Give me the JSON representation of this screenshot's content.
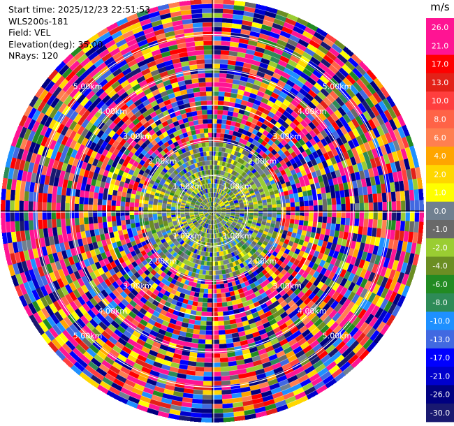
{
  "info": {
    "start_time": "Start time: 2025/12/23 22:51:53",
    "station": "WLS200s-181",
    "field": "Field: VEL",
    "elevation": "Elevation(deg): 35.00",
    "nrays": "NRays: 120"
  },
  "chart_data": {
    "type": "heatmap",
    "projection": "polar-ppi",
    "field": "VEL",
    "n_rays": 120,
    "n_gates": 46,
    "range_rings": [
      {
        "label": "1.00km",
        "range_km": 1.0
      },
      {
        "label": "2.00km",
        "range_km": 2.0
      },
      {
        "label": "3.00km",
        "range_km": 3.0
      },
      {
        "label": "4.00km",
        "range_km": 4.0
      },
      {
        "label": "5.00km",
        "range_km": 5.0
      }
    ],
    "max_range_km": 6.0,
    "colorbar": {
      "unit": "m/s",
      "ticks": [
        "26.0",
        "21.0",
        "17.0",
        "13.0",
        "10.0",
        "8.0",
        "6.0",
        "4.0",
        "2.0",
        "1.0",
        "0.0",
        "-1.0",
        "-2.0",
        "-4.0",
        "-6.0",
        "-8.0",
        "-10.0",
        "-13.0",
        "-17.0",
        "-21.0",
        "-26.0",
        "-30.0"
      ],
      "colors": [
        "#ff1493",
        "#ff1493",
        "#ff0000",
        "#e32118",
        "#ff3e3e",
        "#ff6347",
        "#ff7f50",
        "#ffa500",
        "#ffd700",
        "#ffff00",
        "#708090",
        "#696969",
        "#9acd32",
        "#6b8e23",
        "#228b22",
        "#2e8b57",
        "#1e90ff",
        "#4169e1",
        "#0000ff",
        "#0000cd",
        "#000080",
        "#191970"
      ]
    }
  }
}
